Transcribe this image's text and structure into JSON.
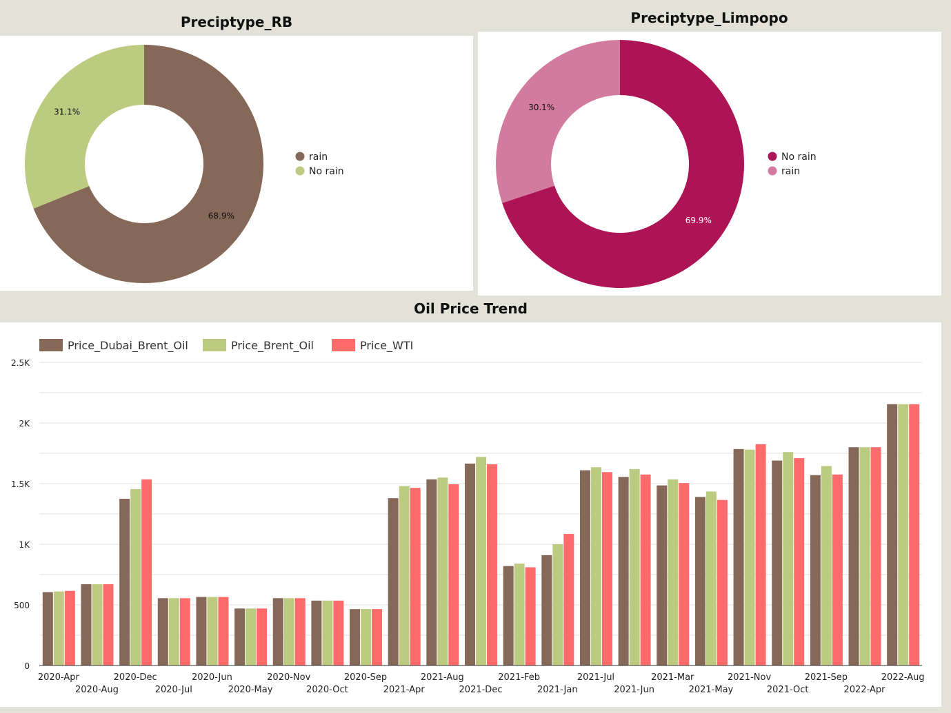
{
  "panels": {
    "rb_title": "Preciptype_RB",
    "limpopo_title": "Preciptype_Limpopo",
    "oil_title": "Oil Price Trend"
  },
  "colors": {
    "background": "#e3e2d8",
    "brown": "#866858",
    "green": "#bccb80",
    "red": "#fd6b6a",
    "magenta": "#ad1456",
    "pink": "#d37b9f"
  },
  "chart_data": [
    {
      "type": "pie",
      "donut": true,
      "title": "Preciptype_RB",
      "legend_position": "right",
      "slices": [
        {
          "label": "rain",
          "value": 68.9,
          "display": "68.9%",
          "color": "#866858"
        },
        {
          "label": "No rain",
          "value": 31.1,
          "display": "31.1%",
          "color": "#bccb80"
        }
      ]
    },
    {
      "type": "pie",
      "donut": true,
      "title": "Preciptype_Limpopo",
      "legend_position": "right",
      "slices": [
        {
          "label": "No rain",
          "value": 69.9,
          "display": "69.9%",
          "color": "#ad1456"
        },
        {
          "label": "rain",
          "value": 30.1,
          "display": "30.1%",
          "color": "#d37b9f"
        }
      ]
    },
    {
      "type": "bar",
      "title": "Oil Price Trend",
      "legend_position": "top-left",
      "grid": true,
      "ylim": [
        0,
        2500
      ],
      "yticks": [
        {
          "value": 0,
          "label": "0"
        },
        {
          "value": 500,
          "label": "500"
        },
        {
          "value": 1000,
          "label": "1K"
        },
        {
          "value": 1500,
          "label": "1.5K"
        },
        {
          "value": 2000,
          "label": "2K"
        },
        {
          "value": 2500,
          "label": "2.5K"
        }
      ],
      "categories": [
        "2020-Apr",
        "2020-Aug",
        "2020-Dec",
        "2020-Jul",
        "2020-Jun",
        "2020-May",
        "2020-Nov",
        "2020-Oct",
        "2020-Sep",
        "2021-Apr",
        "2021-Aug",
        "2021-Dec",
        "2021-Feb",
        "2021-Jan",
        "2021-Jul",
        "2021-Jun",
        "2021-Mar",
        "2021-May",
        "2021-Nov",
        "2021-Oct",
        "2021-Sep",
        "2022-Apr",
        "2022-Aug"
      ],
      "series": [
        {
          "name": "Price_Dubai_Brent_Oil",
          "color": "#866858",
          "values": [
            605,
            670,
            1375,
            555,
            565,
            470,
            555,
            535,
            465,
            1380,
            1535,
            1665,
            820,
            910,
            1610,
            1555,
            1485,
            1390,
            1785,
            1690,
            1570,
            1800,
            2155
          ]
        },
        {
          "name": "Price_Brent_Oil",
          "color": "#bccb80",
          "values": [
            610,
            670,
            1455,
            555,
            565,
            470,
            555,
            535,
            465,
            1480,
            1550,
            1720,
            840,
            1000,
            1635,
            1620,
            1535,
            1435,
            1780,
            1760,
            1645,
            1800,
            2155
          ]
        },
        {
          "name": "Price_WTI",
          "color": "#fd6b6a",
          "values": [
            615,
            670,
            1535,
            555,
            565,
            470,
            555,
            535,
            465,
            1465,
            1495,
            1660,
            810,
            1085,
            1595,
            1575,
            1505,
            1365,
            1825,
            1710,
            1575,
            1800,
            2155
          ]
        }
      ]
    }
  ]
}
